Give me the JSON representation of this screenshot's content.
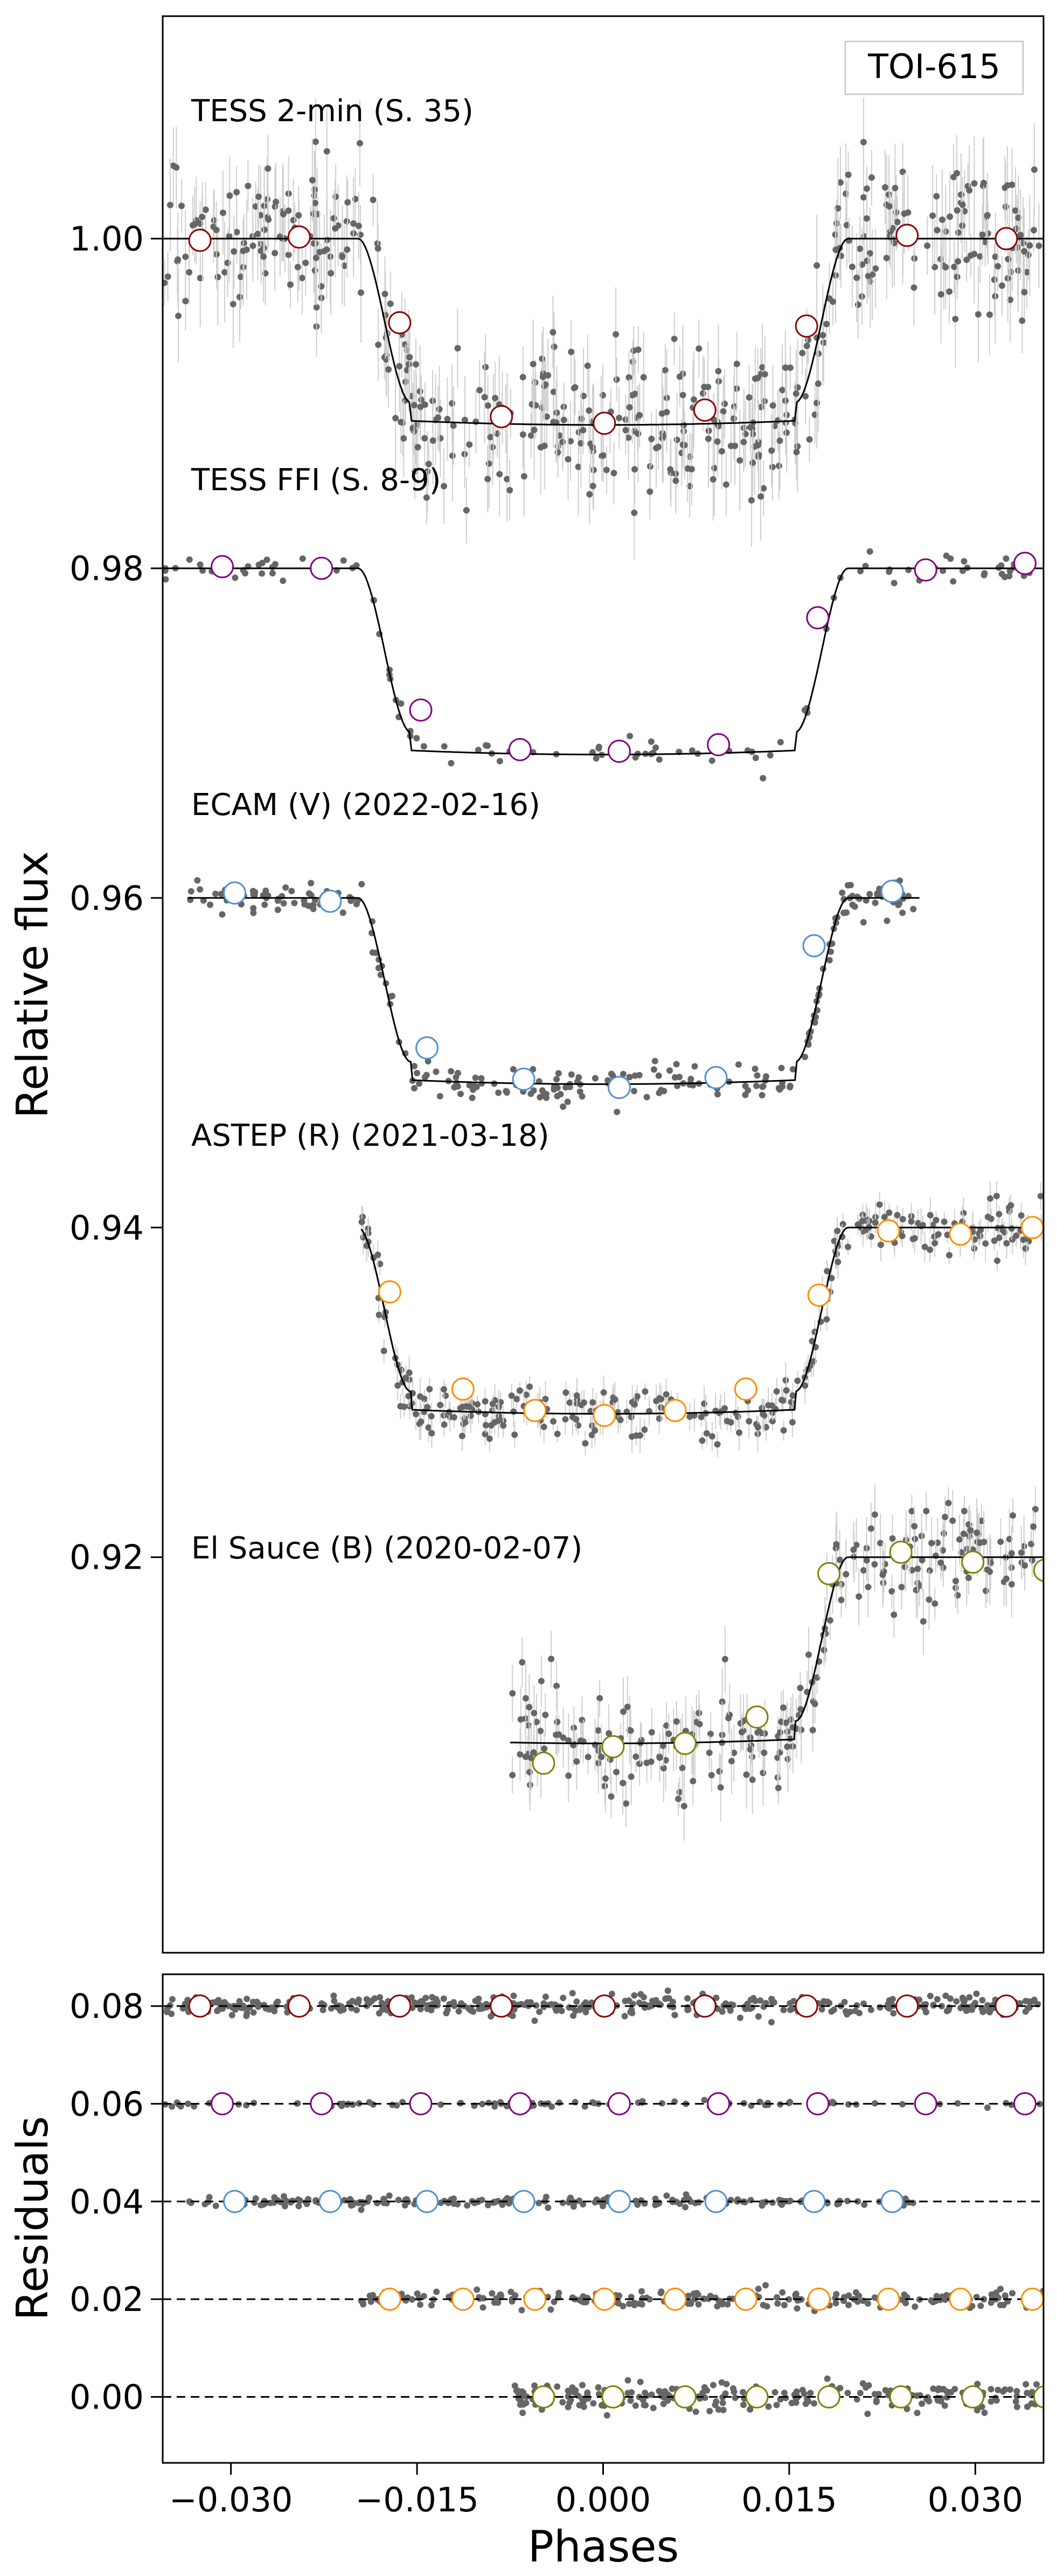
{
  "figure": {
    "ylabel_top": "Relative flux",
    "ylabel_bottom": "Residuals",
    "xlabel": "Phases",
    "legend_box": "TOI-615"
  },
  "chart_data": [
    {
      "type": "scatter",
      "panel": "light curves",
      "xlim": [
        -0.0355,
        0.0355
      ],
      "ylim": [
        0.896,
        1.0135
      ],
      "yticks": [
        1.0,
        0.98,
        0.96,
        0.94,
        0.92
      ],
      "ytick_labels": [
        "1.00",
        "0.98",
        "0.96",
        "0.94",
        "0.92"
      ],
      "grid": false,
      "annotation": "TOI-615",
      "transit": {
        "depth": 0.0113,
        "t14": 0.0395,
        "t23": 0.031
      },
      "point_color": "#666666",
      "model_color": "#000000",
      "series": [
        {
          "name": "TESS 2-min (S. 35)",
          "offset": 1.0,
          "xrange": [
            -0.0355,
            0.0355
          ],
          "scatter": 0.0022,
          "errorbars": true,
          "density": 520,
          "binned_color": "#8b0000",
          "binned_x": [
            -0.0325,
            -0.0245,
            -0.0164,
            -0.0082,
            0.0001,
            0.0082,
            0.0164,
            0.0245,
            0.0325
          ],
          "binned_y": [
            0.9999,
            1.0001,
            0.9949,
            0.9892,
            0.9888,
            0.9896,
            0.9947,
            1.0002,
            1.0
          ]
        },
        {
          "name": "TESS FFI (S. 8-9)",
          "offset": 0.98,
          "xrange": [
            -0.0355,
            0.0355
          ],
          "scatter": 0.0004,
          "errorbars": false,
          "density": 120,
          "binned_color": "#800080",
          "binned_x": [
            -0.0307,
            -0.0227,
            -0.0147,
            -0.0067,
            0.0013,
            0.0093,
            0.0173,
            0.026,
            0.034
          ],
          "binned_y": [
            0.9801,
            0.98,
            0.9714,
            0.969,
            0.9689,
            0.9693,
            0.977,
            0.9799,
            0.9803
          ]
        },
        {
          "name": "ECAM (V) (2022-02-16)",
          "offset": 0.96,
          "xrange": [
            -0.0335,
            0.0255
          ],
          "scatter": 0.0005,
          "errorbars": false,
          "density": 260,
          "binned_color": "#4f90d0",
          "binned_x": [
            -0.0297,
            -0.022,
            -0.0142,
            -0.0064,
            0.0013,
            0.0091,
            0.017,
            0.0233
          ],
          "binned_y": [
            0.9603,
            0.9598,
            0.9509,
            0.949,
            0.9485,
            0.9491,
            0.9571,
            0.9604
          ]
        },
        {
          "name": "ASTEP (R) (2021-03-18)",
          "offset": 0.94,
          "xrange": [
            -0.0195,
            0.0355
          ],
          "scatter": 0.0008,
          "errorbars": true,
          "density": 300,
          "binned_color": "#ff8c00",
          "binned_x": [
            -0.0172,
            -0.0113,
            -0.0055,
            0.0001,
            0.0058,
            0.0115,
            0.0174,
            0.023,
            0.0288,
            0.0346
          ],
          "binned_y": [
            0.9361,
            0.9302,
            0.9289,
            0.9286,
            0.9289,
            0.9302,
            0.9359,
            0.9398,
            0.9396,
            0.94
          ]
        },
        {
          "name": "El Sauce (B) (2020-02-07)",
          "offset": 0.92,
          "xrange": [
            -0.0075,
            0.0355
          ],
          "scatter": 0.0015,
          "errorbars": true,
          "density": 260,
          "binned_color": "#808000",
          "binned_x": [
            -0.0048,
            0.0008,
            0.0066,
            0.0124,
            0.0182,
            0.024,
            0.0298,
            0.0356
          ],
          "binned_y": [
            0.9075,
            0.9085,
            0.9087,
            0.9103,
            0.919,
            0.9203,
            0.9197,
            0.9192
          ]
        }
      ]
    },
    {
      "type": "scatter",
      "panel": "residuals",
      "xlim": [
        -0.0355,
        0.0355
      ],
      "ylim": [
        -0.0135,
        0.0865
      ],
      "yticks": [
        0.08,
        0.06,
        0.04,
        0.02,
        0.0
      ],
      "ytick_labels": [
        "0.08",
        "0.06",
        "0.04",
        "0.02",
        "0.00"
      ],
      "xticks": [
        -0.03,
        -0.015,
        0.0,
        0.015,
        0.03
      ],
      "xtick_labels": [
        "−0.030",
        "−0.015",
        "0.000",
        "0.015",
        "0.030"
      ],
      "grid": false,
      "series": [
        {
          "offset": 0.08,
          "xrange": [
            -0.0355,
            0.0355
          ],
          "scatter": 0.001,
          "density": 420,
          "binned_color": "#8b0000",
          "binned_x": [
            -0.0325,
            -0.0245,
            -0.0164,
            -0.0082,
            0.0001,
            0.0082,
            0.0164,
            0.0245,
            0.0325
          ]
        },
        {
          "offset": 0.06,
          "xrange": [
            -0.0355,
            0.0355
          ],
          "scatter": 0.0003,
          "density": 100,
          "binned_color": "#800080",
          "binned_x": [
            -0.0307,
            -0.0227,
            -0.0147,
            -0.0067,
            0.0013,
            0.0093,
            0.0173,
            0.026,
            0.034
          ]
        },
        {
          "offset": 0.04,
          "xrange": [
            -0.0335,
            0.0255
          ],
          "scatter": 0.0005,
          "density": 220,
          "binned_color": "#4f90d0",
          "binned_x": [
            -0.0297,
            -0.022,
            -0.0142,
            -0.0064,
            0.0013,
            0.0091,
            0.017,
            0.0233
          ]
        },
        {
          "offset": 0.02,
          "xrange": [
            -0.0195,
            0.0355
          ],
          "scatter": 0.0008,
          "density": 260,
          "binned_color": "#ff8c00",
          "binned_x": [
            -0.0172,
            -0.0113,
            -0.0055,
            0.0001,
            0.0058,
            0.0115,
            0.0174,
            0.023,
            0.0288,
            0.0346
          ]
        },
        {
          "offset": 0.0,
          "xrange": [
            -0.0075,
            0.0355
          ],
          "scatter": 0.0015,
          "density": 240,
          "binned_color": "#808000",
          "binned_x": [
            -0.0048,
            0.0008,
            0.0066,
            0.0124,
            0.0182,
            0.024,
            0.0298,
            0.0356
          ]
        }
      ]
    }
  ]
}
